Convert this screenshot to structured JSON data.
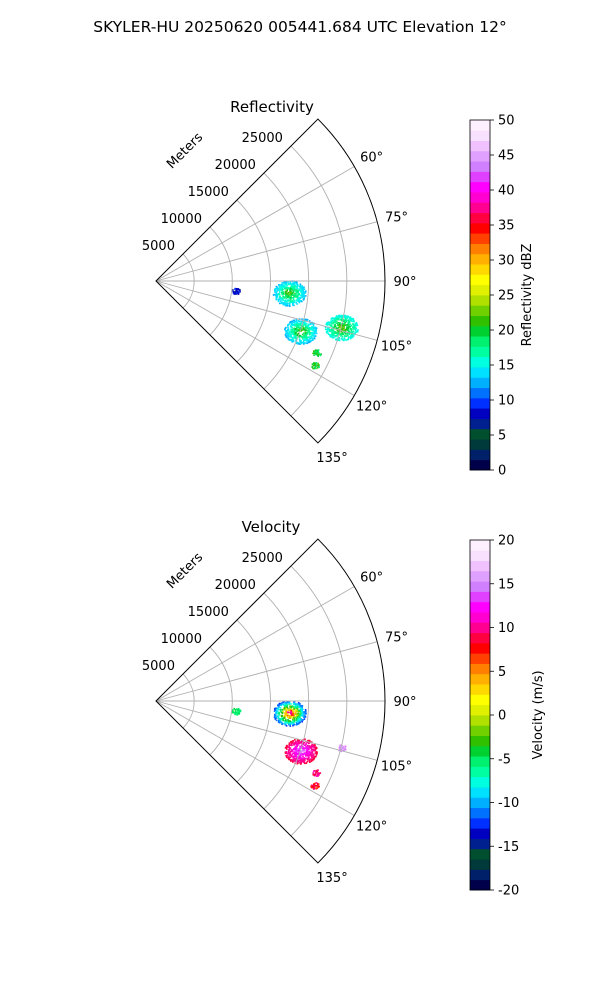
{
  "suptitle": "SKYLER-HU  20250620  005441.684 UTC Elevation 12°",
  "chart_data": [
    {
      "type": "heatmap",
      "subtype": "polar-sector (PPI)",
      "title": "Reflectivity",
      "range_label": "Meters",
      "range_ticks": [
        5000,
        10000,
        15000,
        20000,
        25000
      ],
      "range_lim": [
        0,
        30000
      ],
      "azimuth_ticks": [
        "60°",
        "75°",
        "90°",
        "105°",
        "120°",
        "135°"
      ],
      "azimuth_range_deg": [
        45,
        135
      ],
      "grid": true,
      "colorbar": {
        "label": "Reflectivity dBZ",
        "min": 0,
        "max": 50,
        "ticks": [
          0,
          5,
          10,
          15,
          20,
          25,
          30,
          35,
          40,
          45,
          50
        ],
        "colors": [
          "#00004a",
          "#00206a",
          "#003a3a",
          "#005030",
          "#002090",
          "#0000c0",
          "#0030ff",
          "#0070ff",
          "#00b0ff",
          "#00e0ff",
          "#00ffe0",
          "#00ffa0",
          "#00f070",
          "#00d030",
          "#30c000",
          "#70d000",
          "#b0e000",
          "#e0f000",
          "#ffff00",
          "#ffd800",
          "#ffb000",
          "#ff8000",
          "#ff4000",
          "#ff0000",
          "#ff0040",
          "#ff0090",
          "#ff00d0",
          "#ff00ff",
          "#e040ff",
          "#d080ff",
          "#e0a0ff",
          "#f0c0ff",
          "#f8e0ff",
          "#fff0ff"
        ]
      },
      "echoes": [
        {
          "azimuth_deg": 95,
          "range_m": 17500,
          "dbz_min": 13,
          "dbz_max": 25
        },
        {
          "azimuth_deg": 104,
          "range_m": 25000,
          "dbz_min": 15,
          "dbz_max": 25
        },
        {
          "azimuth_deg": 109,
          "range_m": 20000,
          "dbz_min": 13,
          "dbz_max": 25
        },
        {
          "azimuth_deg": 114,
          "range_m": 23000,
          "dbz_min": 18,
          "dbz_max": 22
        },
        {
          "azimuth_deg": 118,
          "range_m": 23500,
          "dbz_min": 18,
          "dbz_max": 22
        },
        {
          "azimuth_deg": 97,
          "range_m": 10500,
          "dbz_min": 7,
          "dbz_max": 9
        }
      ]
    },
    {
      "type": "heatmap",
      "subtype": "polar-sector (PPI)",
      "title": "Velocity",
      "range_label": "Meters",
      "range_ticks": [
        5000,
        10000,
        15000,
        20000,
        25000
      ],
      "range_lim": [
        0,
        30000
      ],
      "azimuth_ticks": [
        "60°",
        "75°",
        "90°",
        "105°",
        "120°",
        "135°"
      ],
      "azimuth_range_deg": [
        45,
        135
      ],
      "grid": true,
      "colorbar": {
        "label": "Velocity (m/s)",
        "min": -20,
        "max": 20,
        "ticks": [
          -20,
          -15,
          -10,
          -5,
          0,
          5,
          10,
          15,
          20
        ],
        "colors": [
          "#00004a",
          "#00206a",
          "#003a3a",
          "#005030",
          "#002090",
          "#0000c0",
          "#0030ff",
          "#0070ff",
          "#00b0ff",
          "#00e0ff",
          "#00ffe0",
          "#00ffa0",
          "#00f070",
          "#00d030",
          "#30c000",
          "#70d000",
          "#b0e000",
          "#e0f000",
          "#ffff00",
          "#ffd800",
          "#ffb000",
          "#ff8000",
          "#ff4000",
          "#ff0000",
          "#ff0040",
          "#ff0090",
          "#ff00d0",
          "#ff00ff",
          "#e040ff",
          "#d080ff",
          "#e0a0ff",
          "#f0c0ff",
          "#f8e0ff",
          "#fff0ff"
        ]
      },
      "echoes": [
        {
          "azimuth_deg": 95,
          "range_m": 17500,
          "v_min": -12,
          "v_max": 16
        },
        {
          "azimuth_deg": 104,
          "range_m": 25000,
          "v_min": 14,
          "v_max": 17
        },
        {
          "azimuth_deg": 109,
          "range_m": 20000,
          "v_min": 9,
          "v_max": 16
        },
        {
          "azimuth_deg": 114,
          "range_m": 23000,
          "v_min": 8,
          "v_max": 12
        },
        {
          "azimuth_deg": 118,
          "range_m": 23500,
          "v_min": 6,
          "v_max": 10
        },
        {
          "azimuth_deg": 97,
          "range_m": 10500,
          "v_min": -6,
          "v_max": -4
        }
      ]
    }
  ]
}
